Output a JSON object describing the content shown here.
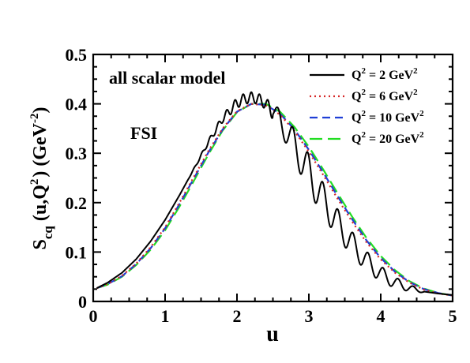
{
  "chart_data": {
    "type": "line",
    "title": "",
    "xlabel": "u",
    "ylabel": "S_cq (u,Q^2) (GeV^-2)",
    "ylabel_parts": {
      "main": "S",
      "sub": "cq",
      "middle": "(u,Q",
      "sup1": "2",
      "close": ")  (GeV",
      "sup2": "-2",
      "end": ")"
    },
    "xlim": [
      0,
      5
    ],
    "ylim": [
      0,
      0.5
    ],
    "xticks": [
      0,
      1,
      2,
      3,
      4,
      5
    ],
    "yticks": [
      0,
      0.1,
      0.2,
      0.3,
      0.4,
      0.5
    ],
    "xtick_labels": [
      "0",
      "1",
      "2",
      "3",
      "4",
      "5"
    ],
    "ytick_labels": [
      "0",
      "0.1",
      "0.2",
      "0.3",
      "0.4",
      "0.5"
    ],
    "grid": false,
    "legend_position": "top-right",
    "annotations": [
      {
        "key": "model",
        "text": "all scalar model"
      },
      {
        "key": "fsi",
        "text": "FSI"
      }
    ],
    "series": [
      {
        "name": "Q^2 = 2 GeV^2",
        "legend": {
          "pre": "Q",
          "sup1": "2",
          "mid": " = 2 GeV",
          "sup2": "2"
        },
        "color": "#000000",
        "dash": "solid",
        "oscillation": true,
        "x": [
          0.05,
          0.2,
          0.4,
          0.6,
          0.8,
          1.0,
          1.2,
          1.4,
          1.6,
          1.8,
          2.0,
          2.1,
          2.2,
          2.3,
          2.4,
          2.5,
          2.6,
          2.7,
          2.8,
          2.9,
          3.0,
          3.2,
          3.4,
          3.6,
          3.8,
          4.0,
          4.2,
          4.4,
          4.6,
          4.8,
          5.0
        ],
        "y": [
          0.027,
          0.038,
          0.058,
          0.086,
          0.122,
          0.165,
          0.215,
          0.268,
          0.322,
          0.37,
          0.402,
          0.41,
          0.413,
          0.41,
          0.4,
          0.385,
          0.365,
          0.342,
          0.316,
          0.288,
          0.26,
          0.206,
          0.158,
          0.117,
          0.082,
          0.056,
          0.038,
          0.027,
          0.02,
          0.016,
          0.013
        ]
      },
      {
        "name": "Q^2 = 6 GeV^2",
        "legend": {
          "pre": "Q",
          "sup1": "2",
          "mid": " = 6 GeV",
          "sup2": "2"
        },
        "color": "#d62728",
        "dash": "dotted",
        "x": [
          0.05,
          0.2,
          0.4,
          0.6,
          0.8,
          1.0,
          1.2,
          1.4,
          1.6,
          1.8,
          2.0,
          2.2,
          2.4,
          2.6,
          2.8,
          3.0,
          3.2,
          3.4,
          3.6,
          3.8,
          4.0,
          4.2,
          4.4,
          4.6,
          4.8,
          5.0
        ],
        "y": [
          0.027,
          0.035,
          0.052,
          0.077,
          0.11,
          0.15,
          0.2,
          0.252,
          0.304,
          0.35,
          0.385,
          0.4,
          0.397,
          0.378,
          0.345,
          0.303,
          0.256,
          0.208,
          0.162,
          0.12,
          0.085,
          0.058,
          0.038,
          0.024,
          0.016,
          0.012
        ]
      },
      {
        "name": "Q^2 = 10 GeV^2",
        "legend": {
          "pre": "Q",
          "sup1": "2",
          "mid": " = 10 GeV",
          "sup2": "2"
        },
        "color": "#1f3fd6",
        "dash": "dashed",
        "x": [
          0.05,
          0.2,
          0.4,
          0.6,
          0.8,
          1.0,
          1.2,
          1.4,
          1.6,
          1.8,
          2.0,
          2.2,
          2.4,
          2.6,
          2.8,
          3.0,
          3.2,
          3.4,
          3.6,
          3.8,
          4.0,
          4.2,
          4.4,
          4.6,
          4.8,
          5.0
        ],
        "y": [
          0.027,
          0.035,
          0.051,
          0.076,
          0.108,
          0.148,
          0.197,
          0.249,
          0.301,
          0.348,
          0.384,
          0.4,
          0.398,
          0.38,
          0.348,
          0.307,
          0.261,
          0.213,
          0.167,
          0.124,
          0.088,
          0.06,
          0.039,
          0.025,
          0.017,
          0.012
        ]
      },
      {
        "name": "Q^2 = 20 GeV^2",
        "legend": {
          "pre": "Q",
          "sup1": "2",
          "mid": " = 20 GeV",
          "sup2": "2"
        },
        "color": "#22dd22",
        "dash": "long-dashed",
        "x": [
          0.05,
          0.2,
          0.4,
          0.6,
          0.8,
          1.0,
          1.2,
          1.4,
          1.6,
          1.8,
          2.0,
          2.2,
          2.4,
          2.6,
          2.8,
          3.0,
          3.2,
          3.4,
          3.6,
          3.8,
          4.0,
          4.2,
          4.4,
          4.6,
          4.8,
          5.0
        ],
        "y": [
          0.027,
          0.034,
          0.05,
          0.074,
          0.105,
          0.144,
          0.192,
          0.244,
          0.297,
          0.346,
          0.383,
          0.4,
          0.4,
          0.384,
          0.353,
          0.313,
          0.267,
          0.219,
          0.172,
          0.129,
          0.092,
          0.063,
          0.041,
          0.026,
          0.017,
          0.012
        ]
      }
    ]
  }
}
